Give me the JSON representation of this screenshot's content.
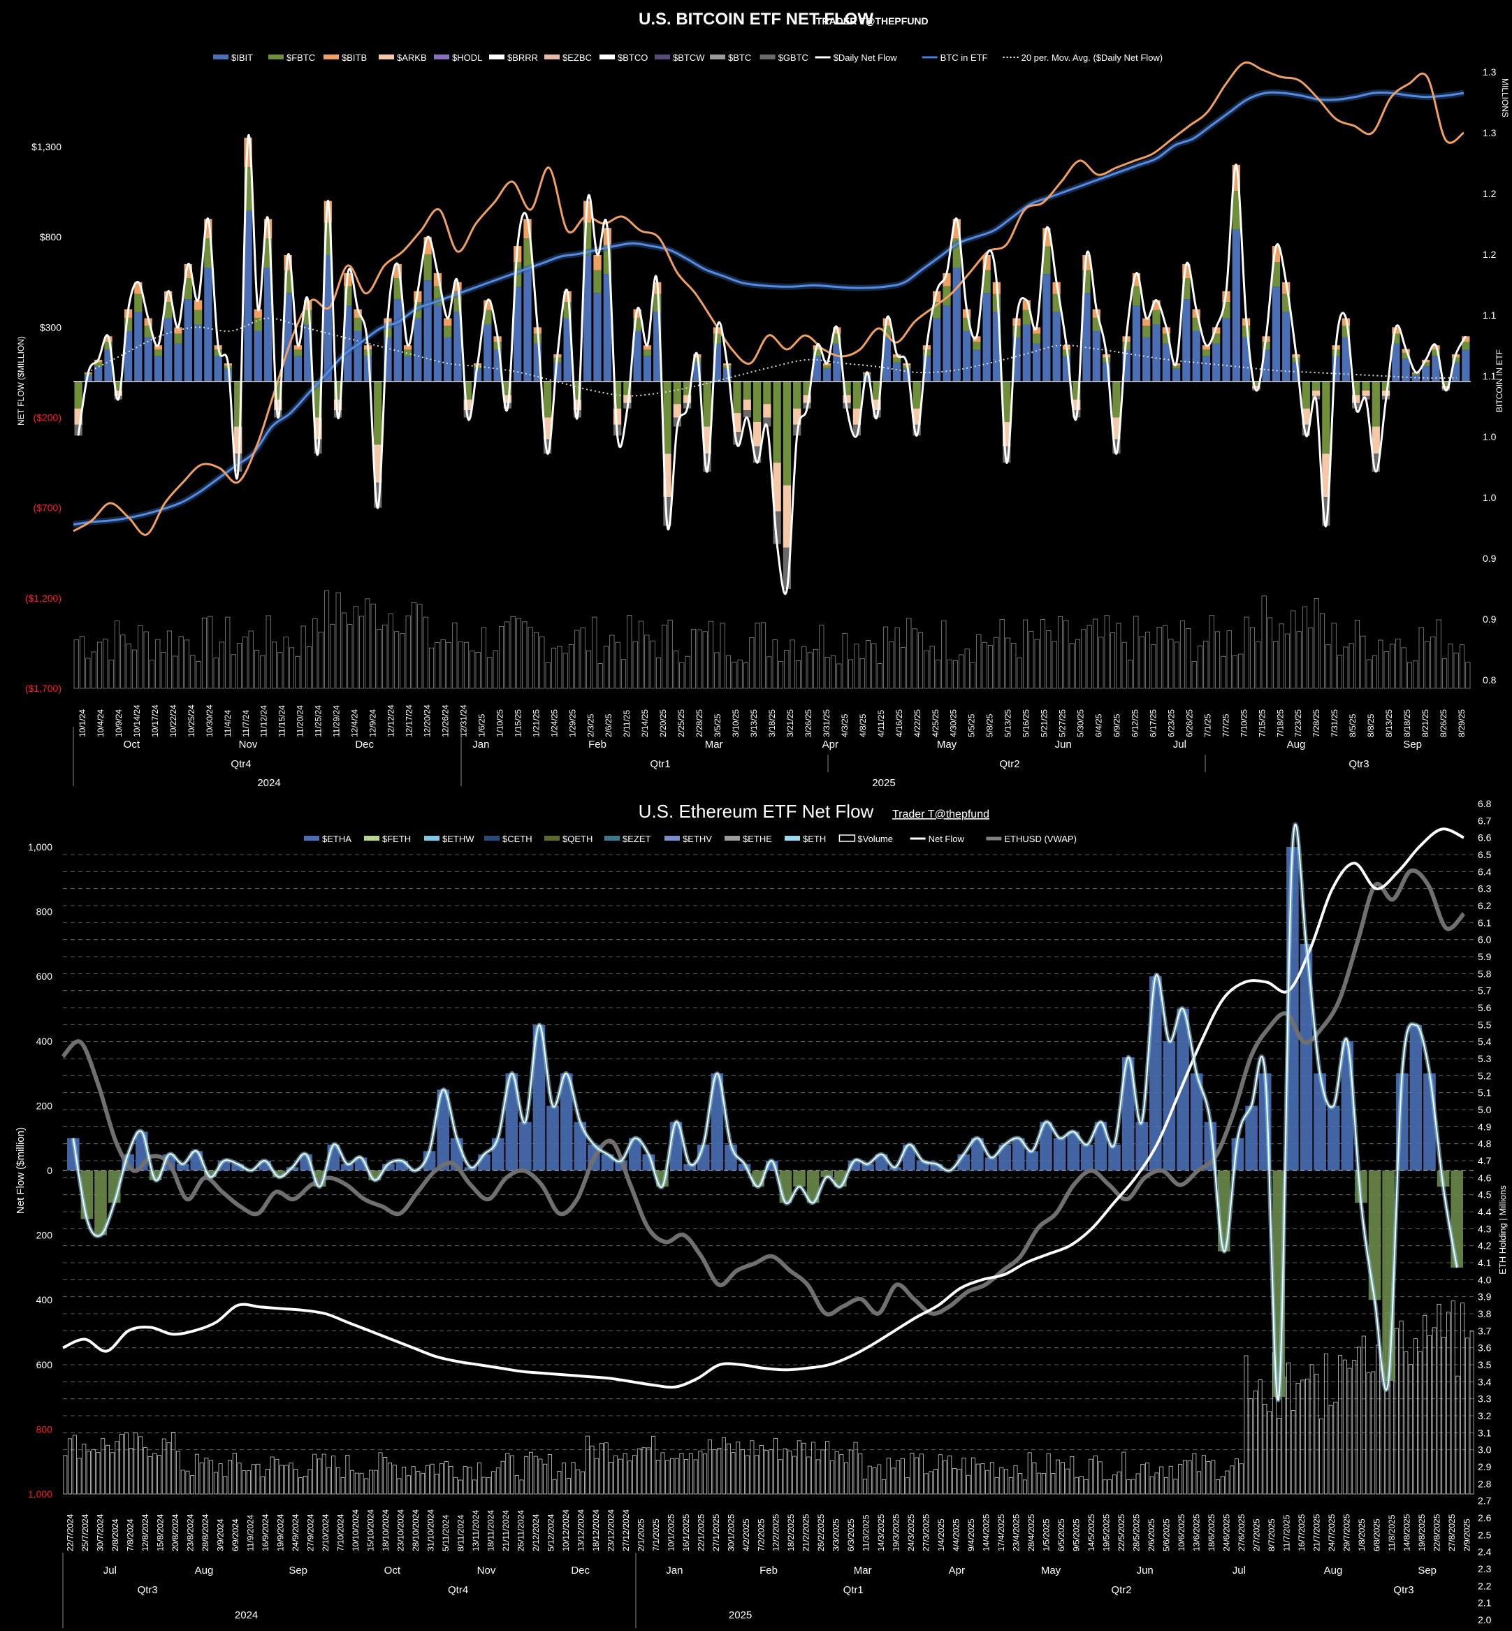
{
  "chart_data": [
    {
      "type": "bar",
      "title": "U.S. BITCOIN ETF NET FLOW",
      "subtitle": "TRADER T@THEPFUND",
      "ylabel": "NET FLOW ($MILLION)",
      "y2label": "BITCOIN IN ETF",
      "y2unit": "MILLIONS",
      "ylim": [
        -1700,
        1300
      ],
      "y_ticks": [
        "$1,300",
        "$800",
        "$300",
        "($200)",
        "($700)",
        "($1,200)",
        "($1,700)"
      ],
      "y_tick_values": [
        1300,
        800,
        300,
        -200,
        -700,
        -1200,
        -1700
      ],
      "y2_ticks": [
        "1.3",
        "1.3",
        "1.2",
        "1.2",
        "1.1",
        "1.1",
        "1.0",
        "1.0",
        "0.9",
        "0.9",
        "0.8"
      ],
      "legend": [
        "$IBIT",
        "$FBTC",
        "$BITB",
        "$ARKB",
        "$HODL",
        "$BRRR",
        "$EZBC",
        "$BTCO",
        "$BTCW",
        "$BTC",
        "$GBTC",
        "$Daily Net Flow",
        "BTC in ETF",
        "20 per. Mov. Avg. ($Daily Net Flow)"
      ],
      "legend_colors": [
        "#4a6fb5",
        "#6f8f3a",
        "#f0a060",
        "#f5c8a8",
        "#8a6fc0",
        "#ffffff",
        "#e8b8a8",
        "#ffffff",
        "#5a4a7a",
        "#9a9a9a",
        "#6a6a6a",
        "#ffffff",
        "#4a7fd0",
        "#ffffff"
      ],
      "x_labels": [
        "10/1/24",
        "10/4/24",
        "10/9/24",
        "10/14/24",
        "10/17/24",
        "10/22/24",
        "10/25/24",
        "10/30/24",
        "11/4/24",
        "11/7/24",
        "11/12/24",
        "11/15/24",
        "11/20/24",
        "11/25/24",
        "11/29/24",
        "12/4/24",
        "12/9/24",
        "12/12/24",
        "12/17/24",
        "12/20/24",
        "12/26/24",
        "12/31/24",
        "1/6/25",
        "1/10/25",
        "1/15/25",
        "1/21/25",
        "1/24/25",
        "1/29/25",
        "2/3/25",
        "2/6/25",
        "2/11/25",
        "2/14/25",
        "2/20/25",
        "2/25/25",
        "2/28/25",
        "3/5/25",
        "3/10/25",
        "3/13/25",
        "3/18/25",
        "3/21/25",
        "3/26/25",
        "3/31/25",
        "4/3/25",
        "4/8/25",
        "4/11/25",
        "4/16/25",
        "4/22/25",
        "4/25/25",
        "4/30/25",
        "5/5/25",
        "5/8/25",
        "5/13/25",
        "5/16/25",
        "5/21/25",
        "5/27/25",
        "5/30/25",
        "6/4/25",
        "6/9/25",
        "6/12/25",
        "6/17/25",
        "6/23/25",
        "6/26/25",
        "7/1/25",
        "7/7/25",
        "7/10/25",
        "7/15/25",
        "7/18/25",
        "7/23/25",
        "7/28/25",
        "7/31/25",
        "8/5/25",
        "8/8/25",
        "8/13/25",
        "8/18/25",
        "8/21/25",
        "8/26/25",
        "8/29/25"
      ],
      "months": [
        "Oct",
        "Nov",
        "Dec",
        "Jan",
        "Feb",
        "Mar",
        "Apr",
        "May",
        "Jun",
        "Jul",
        "Aug",
        "Sep"
      ],
      "quarters": [
        "Qtr4",
        "Qtr1",
        "Qtr2",
        "Qtr3"
      ],
      "years": [
        "2024",
        "2025"
      ],
      "series": [
        {
          "name": "$Daily Net Flow",
          "values": [
            -300,
            50,
            120,
            250,
            -100,
            400,
            550,
            350,
            200,
            500,
            300,
            650,
            450,
            900,
            200,
            100,
            -500,
            1350,
            400,
            900,
            -200,
            700,
            200,
            450,
            -400,
            1000,
            -200,
            600,
            400,
            200,
            -700,
            350,
            650,
            200,
            500,
            800,
            600,
            350,
            550,
            -200,
            100,
            450,
            250,
            -150,
            750,
            900,
            300,
            -400,
            150,
            500,
            -200,
            1000,
            700,
            850,
            -300,
            -150,
            400,
            200,
            550,
            -800,
            -250,
            -150,
            150,
            -500,
            300,
            100,
            -350,
            -200,
            -450,
            -250,
            -900,
            -1150,
            -300,
            -150,
            200,
            100,
            300,
            -150,
            -300,
            50,
            -200,
            350,
            150,
            100,
            -300,
            200,
            500,
            600,
            900,
            400,
            250,
            700,
            550,
            -450,
            350,
            450,
            300,
            850,
            550,
            200,
            -200,
            700,
            400,
            150,
            -400,
            250,
            600,
            350,
            450,
            300,
            100,
            650,
            400,
            200,
            300,
            500,
            1200,
            350,
            -50,
            250,
            750,
            550,
            150,
            -300,
            -100,
            -800,
            200,
            350,
            -150,
            -100,
            -500,
            -100,
            300,
            180,
            50,
            120,
            200,
            -50,
            150,
            250
          ]
        },
        {
          "name": "BTC in ETF",
          "values": [
            0.955,
            0.957,
            0.958,
            0.96,
            0.963,
            0.967,
            0.972,
            0.98,
            0.99,
            1.0,
            1.01,
            1.03,
            1.04,
            1.055,
            1.07,
            1.085,
            1.095,
            1.105,
            1.11,
            1.12,
            1.125,
            1.13,
            1.135,
            1.14,
            1.145,
            1.15,
            1.155,
            1.16,
            1.162,
            1.165,
            1.168,
            1.17,
            1.168,
            1.165,
            1.158,
            1.15,
            1.145,
            1.14,
            1.138,
            1.137,
            1.137,
            1.138,
            1.137,
            1.136,
            1.136,
            1.137,
            1.14,
            1.15,
            1.16,
            1.17,
            1.175,
            1.18,
            1.19,
            1.2,
            1.205,
            1.21,
            1.215,
            1.22,
            1.225,
            1.23,
            1.235,
            1.245,
            1.25,
            1.26,
            1.27,
            1.28,
            1.285,
            1.285,
            1.283,
            1.28,
            1.28,
            1.282,
            1.285,
            1.285,
            1.283,
            1.282,
            1.283,
            1.285
          ]
        },
        {
          "name": "20 per. Mov. Avg. ($Daily Net Flow)",
          "values": [
            50,
            150,
            250,
            300,
            280,
            350,
            300,
            250,
            200,
            150,
            100,
            80,
            50,
            0,
            -50,
            -80,
            -60,
            -20,
            30,
            80,
            120,
            100,
            80,
            50,
            60,
            100,
            150,
            200,
            180,
            150,
            120,
            100,
            80,
            60,
            50,
            40,
            30,
            20,
            20
          ]
        }
      ],
      "volume_ma_label": "",
      "grid": false
    },
    {
      "type": "bar",
      "title": "U.S. Ethereum ETF Net Flow",
      "subtitle": "Trader T@thepfund",
      "ylabel": "Net Flow ($million)",
      "y2label": "ETH Holding | Millions",
      "ylim": [
        -1000,
        1000
      ],
      "y_ticks": [
        "1,000",
        "800",
        "600",
        "400",
        "200",
        "0",
        "200",
        "400",
        "600",
        "800",
        "1,000"
      ],
      "y_tick_values": [
        1000,
        800,
        600,
        400,
        200,
        0,
        -200,
        -400,
        -600,
        -800,
        -1000
      ],
      "y2_ticks": [
        "6.8",
        "6.7",
        "6.6",
        "6.5",
        "6.4",
        "6.3",
        "6.2",
        "6.1",
        "6.0",
        "5.9",
        "5.8",
        "5.7",
        "5.6",
        "5.5",
        "5.4",
        "5.3",
        "5.2",
        "5.1",
        "5.0",
        "4.9",
        "4.8",
        "4.7",
        "4.6",
        "4.5",
        "4.4",
        "4.3",
        "4.2",
        "4.1",
        "4.0",
        "3.9",
        "3.8",
        "3.7",
        "3.6",
        "3.5",
        "3.4",
        "3.3",
        "3.2",
        "3.1",
        "3.0",
        "2.9",
        "2.8",
        "2.7",
        "2.6",
        "2.5",
        "2.4",
        "2.3",
        "2.2",
        "2.1",
        "2.0"
      ],
      "y2lim": [
        2.0,
        6.8
      ],
      "legend": [
        "$ETHA",
        "$FETH",
        "$ETHW",
        "$CETH",
        "$QETH",
        "$EZET",
        "$ETHV",
        "$ETHE",
        "$ETH",
        "$Volume",
        "Net Flow",
        "ETHUSD (VWAP)"
      ],
      "legend_colors": [
        "#4a6fb5",
        "#b5d98a",
        "#7fc8e8",
        "#2a4a7a",
        "#5a6a2a",
        "#3a7a8a",
        "#7a8fd0",
        "#9a9a9a",
        "#9ad8f0",
        "#ffffff",
        "#ffffff",
        "#808080"
      ],
      "x_labels": [
        "22/7/2024",
        "25/7/2024",
        "30/7/2024",
        "2/8/2024",
        "7/8/2024",
        "12/8/2024",
        "15/8/2024",
        "20/8/2024",
        "23/8/2024",
        "28/8/2024",
        "3/9/2024",
        "6/9/2024",
        "11/9/2024",
        "16/9/2024",
        "19/9/2024",
        "24/9/2024",
        "27/9/2024",
        "2/10/2024",
        "7/10/2024",
        "10/10/2024",
        "15/10/2024",
        "18/10/2024",
        "23/10/2024",
        "28/10/2024",
        "31/10/2024",
        "5/11/2024",
        "8/11/2024",
        "13/11/2024",
        "18/11/2024",
        "21/11/2024",
        "26/11/2024",
        "2/12/2024",
        "5/12/2024",
        "10/12/2024",
        "13/12/2024",
        "18/12/2024",
        "23/12/2024",
        "27/12/2024",
        "2/1/2025",
        "7/1/2025",
        "10/1/2025",
        "16/1/2025",
        "22/1/2025",
        "27/1/2025",
        "30/1/2025",
        "4/2/2025",
        "7/2/2025",
        "12/2/2025",
        "18/2/2025",
        "21/2/2025",
        "26/2/2025",
        "3/3/2025",
        "6/3/2025",
        "11/3/2025",
        "14/3/2025",
        "19/3/2025",
        "24/3/2025",
        "27/3/2025",
        "1/4/2025",
        "4/4/2025",
        "9/4/2025",
        "14/4/2025",
        "17/4/2025",
        "23/4/2025",
        "28/4/2025",
        "1/5/2025",
        "6/5/2025",
        "9/5/2025",
        "14/5/2025",
        "19/5/2025",
        "22/5/2025",
        "28/5/2025",
        "2/6/2025",
        "5/6/2025",
        "10/6/2025",
        "13/6/2025",
        "18/6/2025",
        "24/6/2025",
        "27/6/2025",
        "2/7/2025",
        "8/7/2025",
        "11/7/2025",
        "16/7/2025",
        "21/7/2025",
        "24/7/2025",
        "29/7/2025",
        "1/8/2025",
        "6/8/2025",
        "11/8/2025",
        "14/8/2025",
        "19/8/2025",
        "22/8/2025",
        "27/8/2025",
        "2/9/2025"
      ],
      "months": [
        "Jul",
        "Aug",
        "Sep",
        "Oct",
        "Nov",
        "Dec",
        "Jan",
        "Feb",
        "Mar",
        "Apr",
        "May",
        "Jun",
        "Jul",
        "Aug",
        "Sep"
      ],
      "quarters": [
        "Qtr3",
        "Qtr4",
        "Qtr1",
        "Qtr2",
        "Qtr3"
      ],
      "years": [
        "2024",
        "2025"
      ],
      "series": [
        {
          "name": "Net Flow",
          "values": [
            100,
            -150,
            -200,
            -100,
            50,
            120,
            -30,
            50,
            20,
            60,
            -20,
            30,
            20,
            0,
            30,
            -20,
            10,
            50,
            -50,
            80,
            20,
            40,
            -30,
            20,
            30,
            0,
            60,
            250,
            100,
            10,
            50,
            100,
            300,
            150,
            450,
            200,
            300,
            150,
            80,
            50,
            30,
            100,
            50,
            -50,
            150,
            20,
            80,
            300,
            80,
            20,
            -50,
            30,
            -100,
            -50,
            -100,
            -20,
            -50,
            30,
            20,
            50,
            10,
            80,
            30,
            20,
            0,
            50,
            100,
            40,
            80,
            100,
            60,
            150,
            100,
            120,
            80,
            150,
            80,
            350,
            150,
            600,
            400,
            500,
            300,
            150,
            -250,
            100,
            200,
            300,
            -700,
            1000,
            700,
            300,
            200,
            400,
            -100,
            -400,
            -650,
            300,
            450,
            300,
            -50,
            -300
          ]
        },
        {
          "name": "ETH Holding",
          "values": [
            3.6,
            3.65,
            3.58,
            3.7,
            3.72,
            3.68,
            3.7,
            3.75,
            3.85,
            3.84,
            3.83,
            3.82,
            3.8,
            3.75,
            3.7,
            3.65,
            3.6,
            3.55,
            3.52,
            3.5,
            3.48,
            3.46,
            3.45,
            3.44,
            3.43,
            3.42,
            3.4,
            3.38,
            3.37,
            3.42,
            3.5,
            3.5,
            3.48,
            3.47,
            3.48,
            3.5,
            3.55,
            3.62,
            3.7,
            3.78,
            3.85,
            3.95,
            4.0,
            4.03,
            4.1,
            4.15,
            4.2,
            4.3,
            4.45,
            4.6,
            4.8,
            5.1,
            5.4,
            5.65,
            5.75,
            5.75,
            5.7,
            5.95,
            6.3,
            6.45,
            6.3,
            6.4,
            6.55,
            6.65,
            6.6
          ]
        },
        {
          "name": "ETHUSD (VWAP)",
          "values": [
            3400,
            3500,
            3200,
            2800,
            2600,
            2700,
            2650,
            2400,
            2550,
            2450,
            2350,
            2300,
            2450,
            2400,
            2500,
            2550,
            2500,
            2400,
            2350,
            2300,
            2450,
            2600,
            2650,
            2500,
            2400,
            2550,
            2600,
            2500,
            2300,
            2400,
            2700,
            2800,
            2500,
            2200,
            2100,
            2150,
            2000,
            1800,
            1900,
            1950,
            2000,
            1900,
            1800,
            1600,
            1650,
            1700,
            1600,
            1800,
            1700,
            1600,
            1650,
            1750,
            1800,
            1900,
            2000,
            2200,
            2300,
            2500,
            2600,
            2500,
            2400,
            2550,
            2600,
            2500,
            2600,
            2700,
            3000,
            3400,
            3600,
            3700,
            3500,
            3600,
            3800,
            4200,
            4600,
            4500,
            4700,
            4600,
            4300,
            4400
          ]
        }
      ],
      "grid": true
    }
  ]
}
